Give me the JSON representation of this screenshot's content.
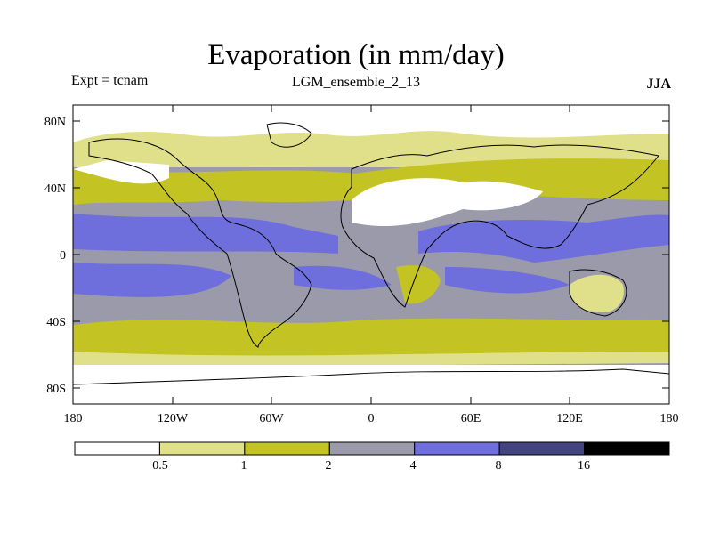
{
  "title": "Evaporation (in mm/day)",
  "experiment_label": "Expt = tcnam",
  "run_name": "LGM_ensemble_2_13",
  "season": "JJA",
  "axes": {
    "lat_labels": [
      "80N",
      "40N",
      "0",
      "40S",
      "80S"
    ],
    "lon_labels": [
      "180",
      "120W",
      "60W",
      "0",
      "60E",
      "120E",
      "180"
    ]
  },
  "colorbar": {
    "colors": [
      "#ffffff",
      "#e0e08a",
      "#c4c324",
      "#9a9aaa",
      "#6e6edd",
      "#43437f",
      "#000000"
    ],
    "labels": [
      "0.5",
      "1",
      "2",
      "4",
      "8",
      "16"
    ]
  },
  "chart_data": {
    "type": "heatmap",
    "title": "Evaporation (in mm/day)",
    "units": "mm/day",
    "levels": [
      0.5,
      1,
      2,
      4,
      8,
      16
    ],
    "x_ticks": [
      "180",
      "120W",
      "60W",
      "0",
      "60E",
      "120E",
      "180"
    ],
    "y_ticks": [
      "80N",
      "40N",
      "0",
      "40S",
      "80S"
    ]
  }
}
